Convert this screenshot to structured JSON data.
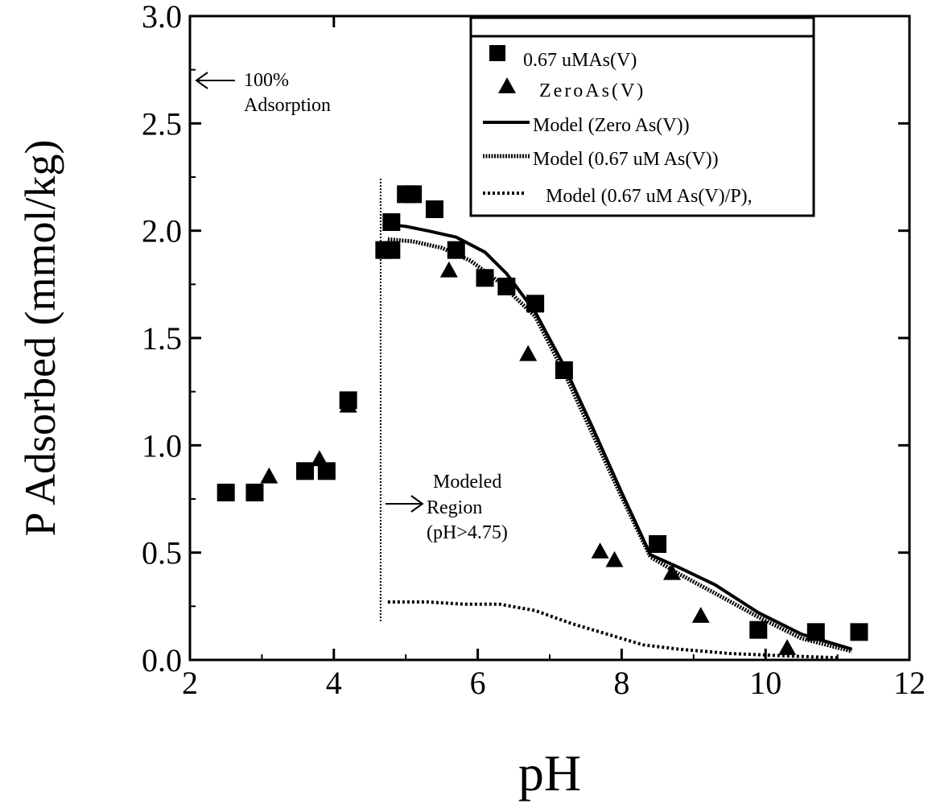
{
  "chart_data": {
    "type": "scatter",
    "xlabel": "pH",
    "ylabel": "P Adsorbed (mmol/kg)",
    "xlim": [
      2,
      12
    ],
    "ylim": [
      0,
      3
    ],
    "x_ticks": [
      "2",
      "4",
      "6",
      "8",
      "10",
      "12"
    ],
    "y_ticks": [
      "0.0",
      "0.5",
      "1.0",
      "1.5",
      "2.0",
      "2.5",
      "3.0"
    ],
    "grid": false,
    "legend_position": "top-right",
    "series": [
      {
        "name": "0.67 uMAs(V)",
        "kind": "points",
        "marker": "square",
        "points": [
          [
            2.5,
            0.78
          ],
          [
            2.9,
            0.78
          ],
          [
            3.6,
            0.88
          ],
          [
            3.9,
            0.88
          ],
          [
            4.2,
            1.21
          ],
          [
            4.7,
            1.91
          ],
          [
            4.8,
            1.91
          ],
          [
            4.8,
            2.04
          ],
          [
            5.0,
            2.17
          ],
          [
            5.1,
            2.17
          ],
          [
            5.4,
            2.1
          ],
          [
            5.7,
            1.91
          ],
          [
            6.1,
            1.78
          ],
          [
            6.4,
            1.74
          ],
          [
            6.8,
            1.66
          ],
          [
            7.2,
            1.35
          ],
          [
            8.5,
            0.54
          ],
          [
            9.9,
            0.14
          ],
          [
            10.7,
            0.13
          ],
          [
            11.3,
            0.13
          ]
        ]
      },
      {
        "name": "ZeroAs(V)",
        "kind": "points",
        "marker": "triangle",
        "points": [
          [
            3.1,
            0.86
          ],
          [
            3.8,
            0.94
          ],
          [
            4.2,
            1.19
          ],
          [
            5.6,
            1.82
          ],
          [
            6.7,
            1.43
          ],
          [
            7.7,
            0.51
          ],
          [
            7.9,
            0.47
          ],
          [
            8.7,
            0.41
          ],
          [
            9.1,
            0.21
          ],
          [
            10.3,
            0.06
          ]
        ]
      },
      {
        "name": "Model (Zero As(V))",
        "kind": "line",
        "dash": "solid",
        "points": [
          [
            4.75,
            2.03
          ],
          [
            5.0,
            2.02
          ],
          [
            5.3,
            2.0
          ],
          [
            5.7,
            1.97
          ],
          [
            6.1,
            1.9
          ],
          [
            6.4,
            1.8
          ],
          [
            6.8,
            1.62
          ],
          [
            7.2,
            1.37
          ],
          [
            7.6,
            1.08
          ],
          [
            8.0,
            0.78
          ],
          [
            8.4,
            0.49
          ],
          [
            8.8,
            0.43
          ],
          [
            9.3,
            0.35
          ],
          [
            9.9,
            0.22
          ],
          [
            10.5,
            0.12
          ],
          [
            11.2,
            0.05
          ]
        ]
      },
      {
        "name": "Model (0.67 uM As(V))",
        "kind": "line",
        "dash": "dense",
        "points": [
          [
            4.75,
            1.96
          ],
          [
            5.1,
            1.95
          ],
          [
            5.5,
            1.92
          ],
          [
            5.9,
            1.86
          ],
          [
            6.3,
            1.76
          ],
          [
            6.8,
            1.6
          ],
          [
            7.2,
            1.34
          ],
          [
            7.6,
            1.05
          ],
          [
            8.0,
            0.76
          ],
          [
            8.4,
            0.48
          ],
          [
            8.8,
            0.4
          ],
          [
            9.3,
            0.31
          ],
          [
            9.9,
            0.2
          ],
          [
            10.5,
            0.1
          ],
          [
            11.2,
            0.04
          ]
        ]
      },
      {
        "name": "Model (0.67 uM As(V)/P)",
        "kind": "line",
        "dash": "dotted",
        "points": [
          [
            4.75,
            0.27
          ],
          [
            5.3,
            0.27
          ],
          [
            5.8,
            0.26
          ],
          [
            6.3,
            0.26
          ],
          [
            6.8,
            0.23
          ],
          [
            7.3,
            0.17
          ],
          [
            7.8,
            0.12
          ],
          [
            8.3,
            0.07
          ],
          [
            8.8,
            0.05
          ],
          [
            9.5,
            0.03
          ],
          [
            10.2,
            0.02
          ],
          [
            11.0,
            0.01
          ]
        ]
      }
    ],
    "legend": [
      {
        "label": "0.67  uMAs(V)",
        "symbol": "square"
      },
      {
        "label": "ZeroAs(V)",
        "symbol": "triangle"
      },
      {
        "label": "Model (Zero As(V))",
        "symbol": "line-solid"
      },
      {
        "label": "Model (0.67 uM As(V))",
        "symbol": "line-dense"
      },
      {
        "label": "Model (0.67    uM As(V)/P),",
        "symbol": "line-dotted"
      }
    ],
    "annotations": {
      "adsorption_line1": "100%",
      "adsorption_line2": "Adsorption",
      "adsorption_y": 2.7,
      "modeled_line1": "Modeled",
      "modeled_line2": "Region",
      "modeled_line3": "(pH>4.75)",
      "modeled_x": 4.65
    }
  }
}
